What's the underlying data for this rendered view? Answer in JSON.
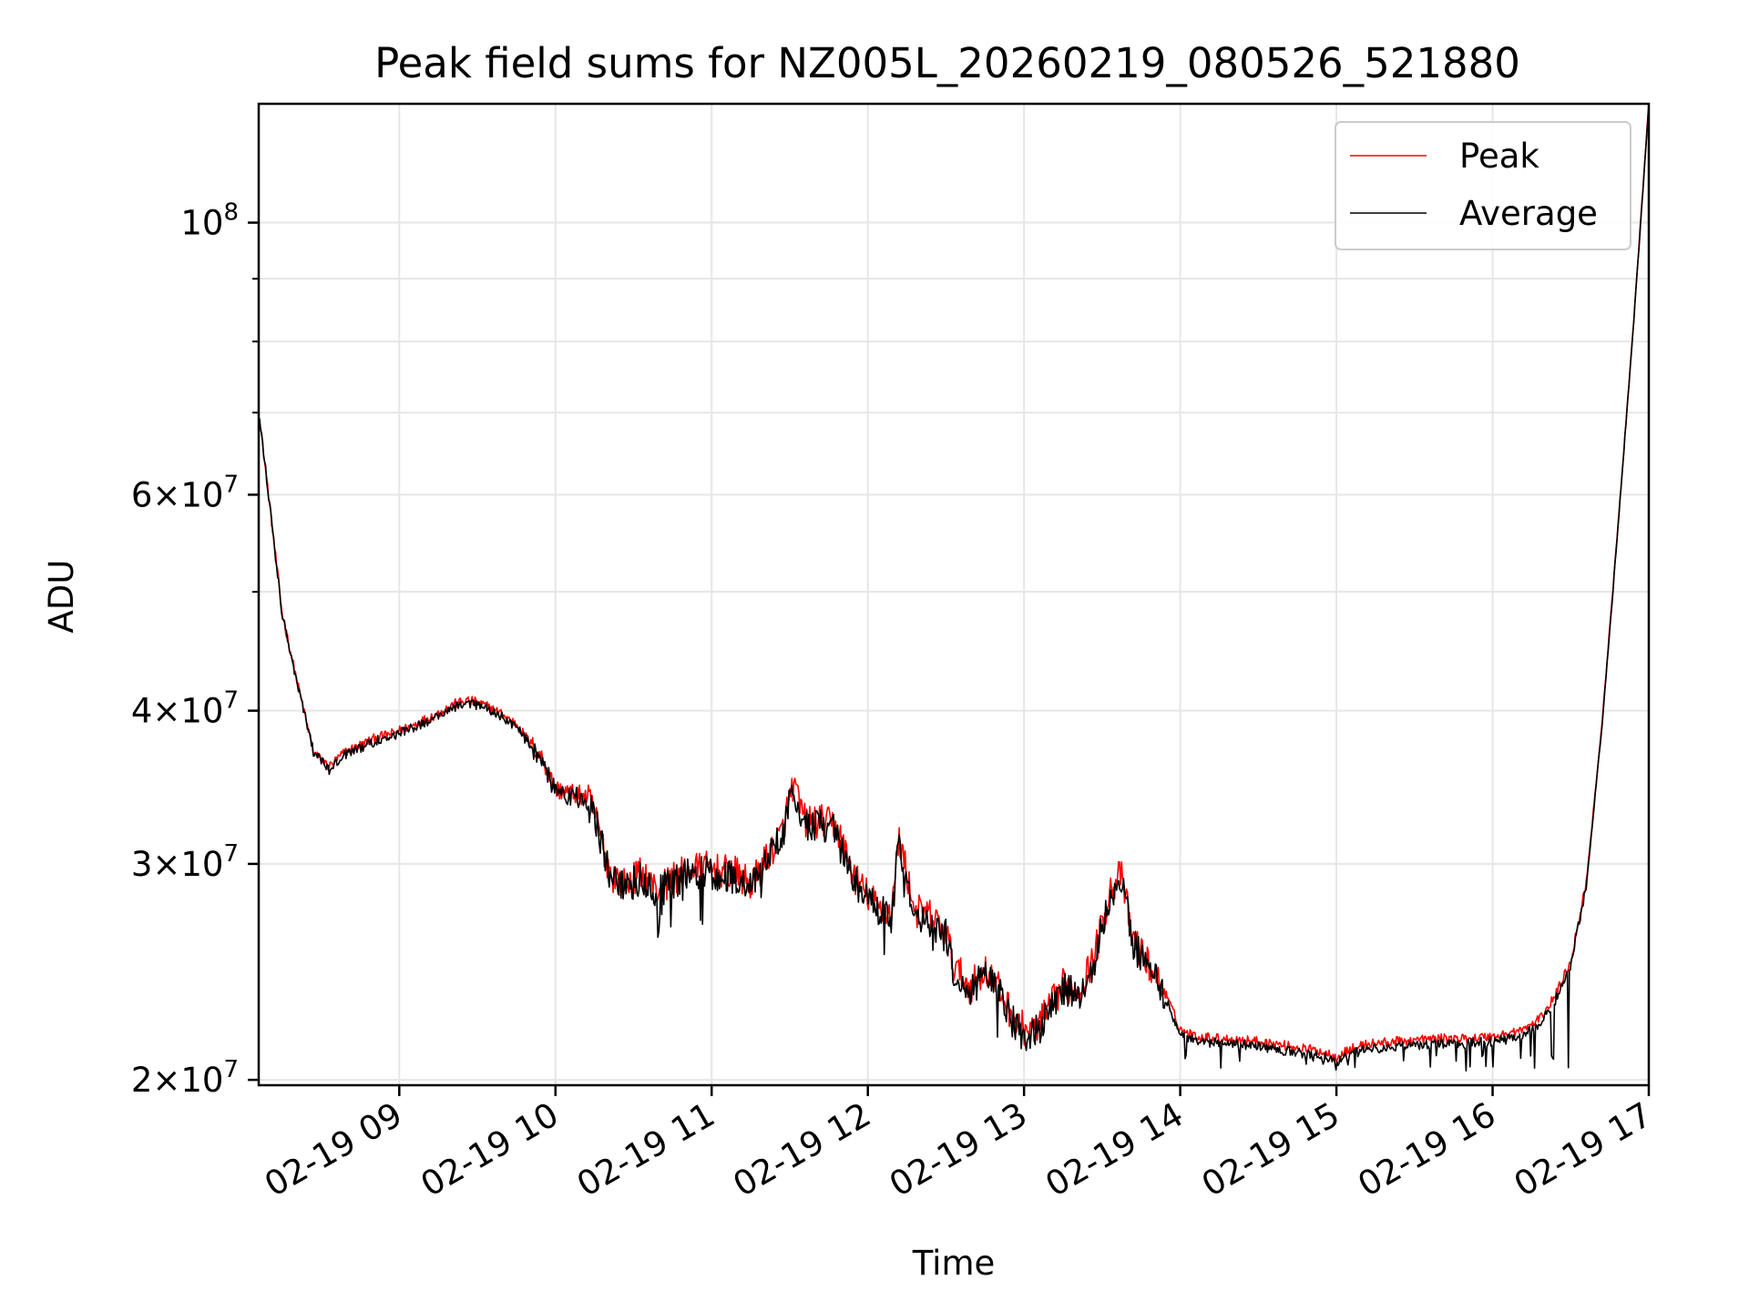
{
  "chart_data": {
    "type": "line",
    "title": "Peak field sums for NZ005L_20260219_080526_521880",
    "xlabel": "Time",
    "ylabel": "ADU",
    "yscale": "log",
    "ylim": [
      19800000,
      125000000
    ],
    "xlim": [
      8.1,
      17.0
    ],
    "grid": true,
    "legend_position": "top-right",
    "x_ticks": [
      {
        "value": 9,
        "label": "02-19 09"
      },
      {
        "value": 10,
        "label": "02-19 10"
      },
      {
        "value": 11,
        "label": "02-19 11"
      },
      {
        "value": 12,
        "label": "02-19 12"
      },
      {
        "value": 13,
        "label": "02-19 13"
      },
      {
        "value": 14,
        "label": "02-19 14"
      },
      {
        "value": 15,
        "label": "02-19 15"
      },
      {
        "value": 16,
        "label": "02-19 16"
      },
      {
        "value": 17,
        "label": "02-19 17"
      }
    ],
    "y_ticks": [
      {
        "value": 20000000,
        "mantissa": "2",
        "exp": "7"
      },
      {
        "value": 30000000,
        "mantissa": "3",
        "exp": "7"
      },
      {
        "value": 40000000,
        "mantissa": "4",
        "exp": "7"
      },
      {
        "value": 60000000,
        "mantissa": "6",
        "exp": "7"
      },
      {
        "value": 100000000,
        "mantissa": "",
        "exp": "8"
      }
    ],
    "y_minor_ticks": [
      50000000,
      70000000,
      80000000,
      90000000
    ],
    "series": [
      {
        "name": "Peak",
        "color": "#ff0000",
        "anchors_x": [
          8.1,
          8.15,
          8.25,
          8.35,
          8.45,
          8.55,
          8.65,
          8.75,
          8.85,
          8.95,
          9.1,
          9.25,
          9.35,
          9.45,
          9.55,
          9.65,
          9.75,
          9.85,
          9.92,
          10.0,
          10.1,
          10.2,
          10.25,
          10.35,
          10.45,
          10.55,
          10.65,
          10.75,
          10.85,
          10.95,
          11.05,
          11.15,
          11.25,
          11.35,
          11.45,
          11.52,
          11.6,
          11.7,
          11.8,
          11.9,
          11.95,
          12.05,
          12.15,
          12.2,
          12.3,
          12.4,
          12.5,
          12.55,
          12.65,
          12.75,
          12.85,
          12.95,
          13.05,
          13.15,
          13.25,
          13.35,
          13.45,
          13.55,
          13.62,
          13.7,
          13.8,
          13.9,
          14.0,
          14.1,
          14.3,
          14.5,
          14.7,
          14.9,
          15.0,
          15.1,
          15.2,
          15.4,
          15.6,
          15.8,
          16.0,
          16.1,
          16.2,
          16.3,
          16.4,
          16.5,
          16.6,
          16.7,
          16.8,
          16.9,
          17.0
        ],
        "anchors_y": [
          70000000,
          62000000,
          48000000,
          42000000,
          37000000,
          36000000,
          37000000,
          37500000,
          38000000,
          38300000,
          39000000,
          39800000,
          40500000,
          40800000,
          40400000,
          39800000,
          39000000,
          37500000,
          36500000,
          34500000,
          34300000,
          34000000,
          33000000,
          29500000,
          28800000,
          29500000,
          28500000,
          29200000,
          29600000,
          29800000,
          29600000,
          29500000,
          28800000,
          30300000,
          31800000,
          34800000,
          32500000,
          32500000,
          32200000,
          29500000,
          28800000,
          27800000,
          27300000,
          31500000,
          27500000,
          27200000,
          26400000,
          24800000,
          23800000,
          24600000,
          23600000,
          22200000,
          21900000,
          22700000,
          23900000,
          23700000,
          25200000,
          28600000,
          29400000,
          26000000,
          24800000,
          23600000,
          22000000,
          21700000,
          21600000,
          21500000,
          21300000,
          21100000,
          20900000,
          21200000,
          21400000,
          21500000,
          21600000,
          21600000,
          21700000,
          21800000,
          22000000,
          22400000,
          23400000,
          25000000,
          29000000,
          39000000,
          56000000,
          82000000,
          125000000
        ]
      },
      {
        "name": "Average",
        "color": "#000000",
        "anchors_x": [
          8.1,
          8.15,
          8.25,
          8.35,
          8.45,
          8.55,
          8.65,
          8.75,
          8.85,
          8.95,
          9.1,
          9.25,
          9.35,
          9.45,
          9.55,
          9.65,
          9.75,
          9.85,
          9.92,
          10.0,
          10.1,
          10.2,
          10.25,
          10.35,
          10.45,
          10.55,
          10.65,
          10.75,
          10.85,
          10.95,
          11.05,
          11.15,
          11.25,
          11.35,
          11.45,
          11.52,
          11.6,
          11.7,
          11.8,
          11.9,
          11.95,
          12.05,
          12.15,
          12.2,
          12.3,
          12.4,
          12.5,
          12.55,
          12.65,
          12.75,
          12.85,
          12.95,
          13.05,
          13.15,
          13.25,
          13.35,
          13.45,
          13.55,
          13.62,
          13.7,
          13.8,
          13.9,
          14.0,
          14.1,
          14.3,
          14.5,
          14.7,
          14.9,
          15.0,
          15.1,
          15.2,
          15.4,
          15.6,
          15.8,
          16.0,
          16.1,
          16.2,
          16.3,
          16.4,
          16.5,
          16.6,
          16.7,
          16.8,
          16.9,
          17.0
        ],
        "anchors_y": [
          70000000,
          62000000,
          48000000,
          42000000,
          37000000,
          35800000,
          36800000,
          37300000,
          37800000,
          38100000,
          38800000,
          39600000,
          40300000,
          40600000,
          40200000,
          39600000,
          38800000,
          37300000,
          36300000,
          34300000,
          34100000,
          33800000,
          32800000,
          29300000,
          28600000,
          29300000,
          28300000,
          29000000,
          29400000,
          29600000,
          29400000,
          29300000,
          28600000,
          30100000,
          31600000,
          34600000,
          32300000,
          32300000,
          32000000,
          29300000,
          28600000,
          27600000,
          27100000,
          31300000,
          27300000,
          27000000,
          26200000,
          24600000,
          23600000,
          24400000,
          23400000,
          22000000,
          21700000,
          22500000,
          23700000,
          23500000,
          25000000,
          28400000,
          29200000,
          25800000,
          24600000,
          23400000,
          21800000,
          21500000,
          21400000,
          21300000,
          21100000,
          20900000,
          20700000,
          21000000,
          21200000,
          21300000,
          21400000,
          21400000,
          21500000,
          21600000,
          21800000,
          22200000,
          23200000,
          24800000,
          28800000,
          38800000,
          55800000,
          81800000,
          124500000
        ]
      }
    ]
  }
}
